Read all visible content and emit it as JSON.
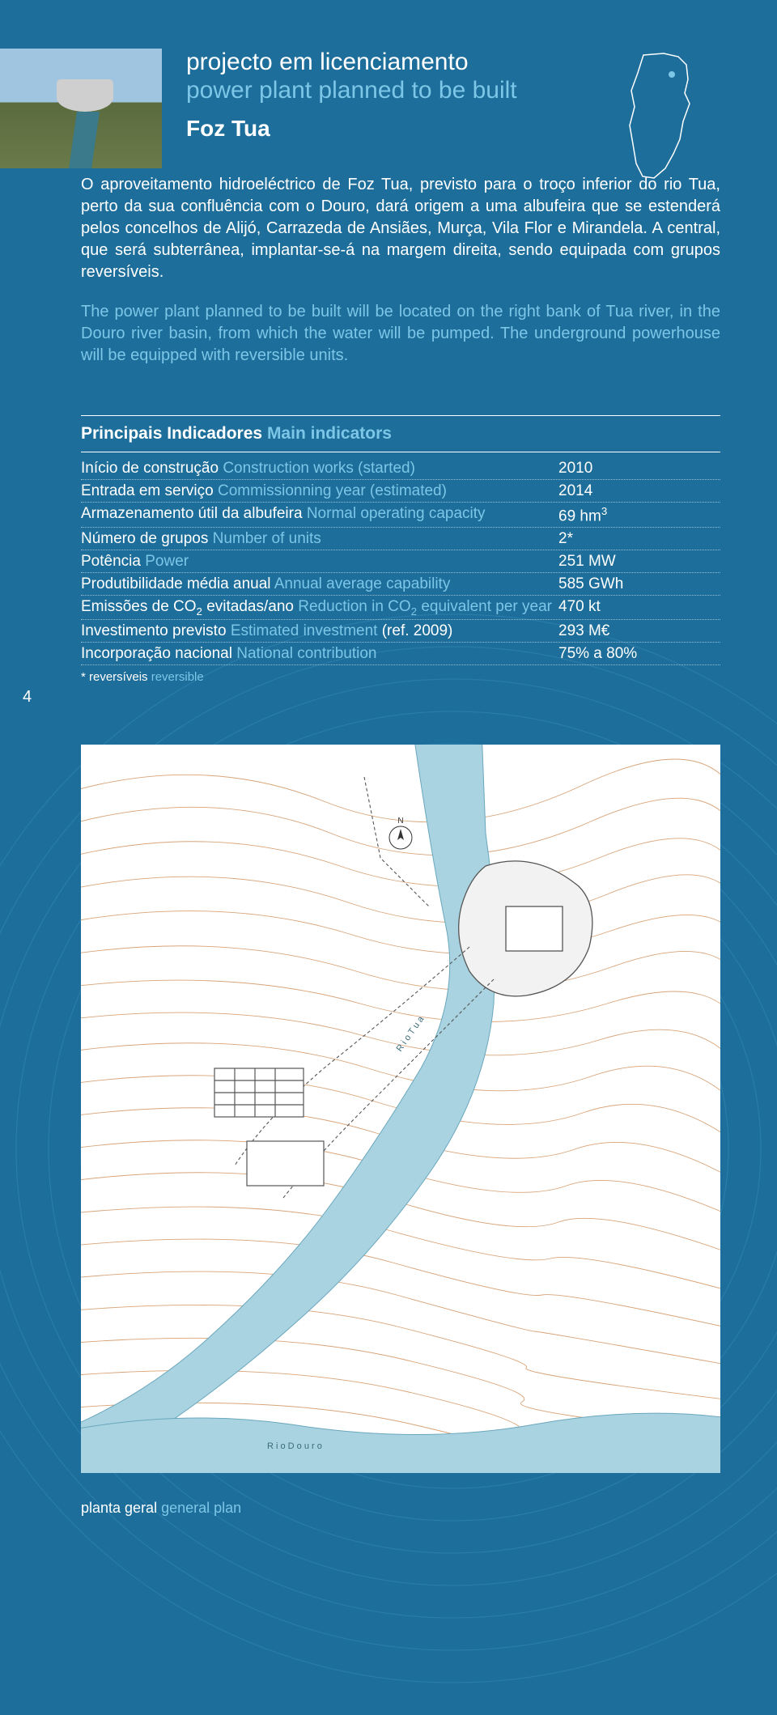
{
  "page_number": "4",
  "header": {
    "title_pt": "projecto em licenciamento",
    "title_en": "power plant planned to be built",
    "project_name": "Foz Tua"
  },
  "description": {
    "pt": "O aproveitamento hidroeléctrico de Foz Tua, previsto para o troço inferior do rio Tua, perto da sua confluência com o Douro, dará origem a uma albufeira que se estenderá pelos concelhos de Alijó, Carrazeda de Ansiães, Murça, Vila Flor e Mirandela. A central, que será subterrânea, implantar-se-á na margem direita, sendo equipada com grupos reversíveis.",
    "en": "The power plant planned to be built will be located on the right bank of Tua river, in the Douro river basin, from which the water will be pumped. The underground powerhouse will be equipped with reversible units."
  },
  "indicators": {
    "title_pt": "Principais Indicadores",
    "title_en": "Main indicators",
    "rows": [
      {
        "label_pt": "Início de construção",
        "label_en": "Construction works (started)",
        "value": "2010"
      },
      {
        "label_pt": "Entrada em serviço",
        "label_en": "Commissionning year (estimated)",
        "value": "2014"
      },
      {
        "label_pt": "Armazenamento útil da albufeira",
        "label_en": "Normal operating capacity",
        "value": "69 hm",
        "value_sup": "3"
      },
      {
        "label_pt": "Número de grupos",
        "label_en": "Number of units",
        "value": "2*"
      },
      {
        "label_pt": "Potência",
        "label_en": "Power",
        "value": "251 MW"
      },
      {
        "label_pt": "Produtibilidade média anual",
        "label_en": "Annual average capability",
        "value": "585 GWh"
      },
      {
        "label_pt": "Emissões de CO",
        "label_sub": "2",
        "label_pt2": " evitadas/ano",
        "label_en": "Reduction in CO",
        "label_en_sub": "2",
        "label_en2": " equivalent per year",
        "value": "470 kt"
      },
      {
        "label_pt": "Investimento previsto",
        "label_en": "Estimated investment",
        "label_en2_plain": " (ref. 2009)",
        "value": "293 M€"
      },
      {
        "label_pt": "Incorporação nacional",
        "label_en": "National contribution",
        "value": "75% a 80%"
      }
    ],
    "footnote_pt": "* reversíveis",
    "footnote_en": "reversible"
  },
  "plan_caption": {
    "pt": "planta geral",
    "en": "general plan"
  },
  "colors": {
    "bg": "#1d6e9a",
    "accent": "#7cc6e8",
    "contour": "#d49a6a",
    "water": "#a9d3e0",
    "structure": "#555555"
  }
}
